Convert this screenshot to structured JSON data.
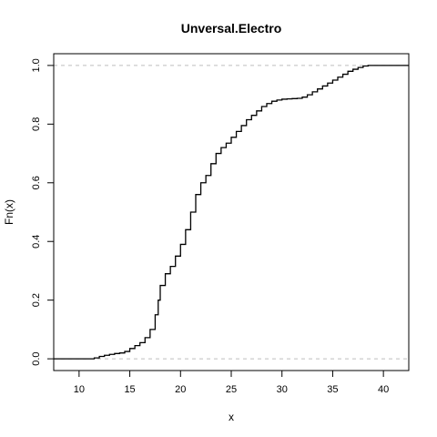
{
  "chart_data": {
    "type": "line",
    "subtype": "step-ecdf",
    "title": "Unversal.Electro",
    "xlabel": "x",
    "ylabel": "Fn(x)",
    "xlim": [
      7.5,
      42.5
    ],
    "ylim": [
      -0.04,
      1.04
    ],
    "x_ticks": [
      10,
      15,
      20,
      25,
      30,
      35,
      40
    ],
    "y_ticks": [
      0.0,
      0.2,
      0.4,
      0.6,
      0.8,
      1.0
    ],
    "x_tick_labels": [
      "10",
      "15",
      "20",
      "25",
      "30",
      "35",
      "40"
    ],
    "y_tick_labels": [
      "0.0",
      "0.2",
      "0.4",
      "0.6",
      "0.8",
      "1.0"
    ],
    "reference_lines_y": [
      0,
      1
    ],
    "grid": false,
    "legend": "none",
    "series": [
      {
        "x": [
          7.5,
          11.0,
          11.5,
          12.0,
          12.5,
          13.0,
          13.5,
          14.0,
          14.5,
          15.0,
          15.5,
          16.0,
          16.5,
          17.0,
          17.5,
          17.8,
          18.0,
          18.5,
          19.0,
          19.5,
          20.0,
          20.5,
          21.0,
          21.5,
          22.0,
          22.5,
          23.0,
          23.5,
          24.0,
          24.5,
          25.0,
          25.5,
          26.0,
          26.5,
          27.0,
          27.5,
          28.0,
          28.5,
          29.0,
          29.5,
          30.0,
          30.5,
          31.0,
          31.5,
          32.0,
          32.5,
          33.0,
          33.5,
          34.0,
          34.5,
          35.0,
          35.5,
          36.0,
          36.5,
          37.0,
          37.5,
          38.0,
          38.5,
          39.0,
          42.5
        ],
        "y": [
          0.0,
          0.0,
          0.003,
          0.008,
          0.012,
          0.015,
          0.018,
          0.02,
          0.025,
          0.035,
          0.045,
          0.055,
          0.072,
          0.1,
          0.15,
          0.2,
          0.25,
          0.29,
          0.315,
          0.35,
          0.39,
          0.44,
          0.5,
          0.56,
          0.6,
          0.625,
          0.665,
          0.7,
          0.72,
          0.735,
          0.755,
          0.775,
          0.795,
          0.815,
          0.83,
          0.845,
          0.86,
          0.87,
          0.878,
          0.882,
          0.885,
          0.886,
          0.887,
          0.888,
          0.892,
          0.9,
          0.91,
          0.92,
          0.93,
          0.94,
          0.95,
          0.96,
          0.97,
          0.98,
          0.987,
          0.993,
          0.998,
          1.0,
          1.0,
          1.0
        ]
      }
    ]
  }
}
